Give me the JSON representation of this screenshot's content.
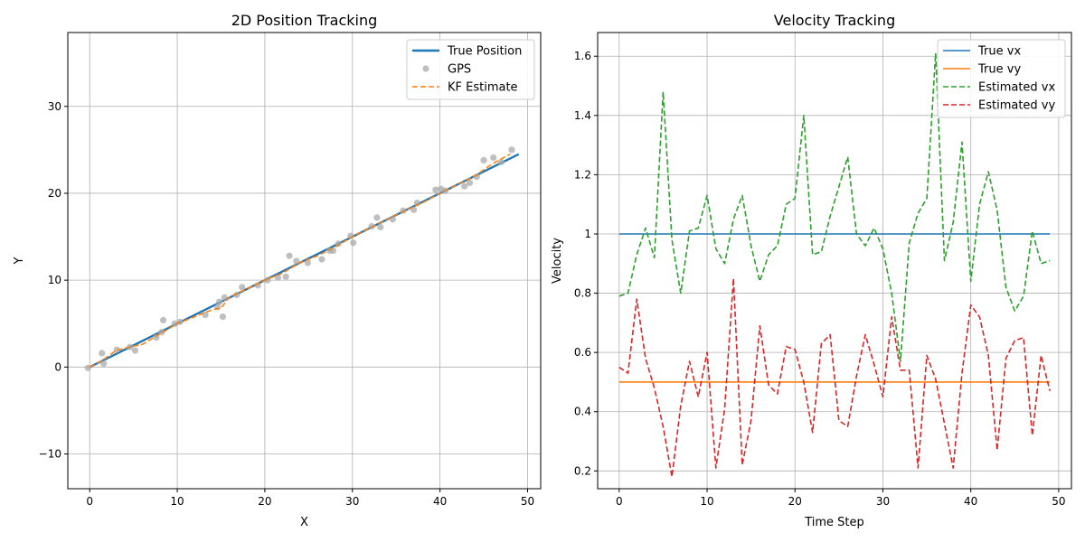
{
  "chart_data": [
    {
      "type": "line",
      "title": "2D Position Tracking",
      "xlabel": "X",
      "ylabel": "Y",
      "xlim": [
        -2.5,
        51.5
      ],
      "ylim": [
        -14,
        38.5
      ],
      "xticks": [
        0,
        10,
        20,
        30,
        40,
        50
      ],
      "yticks": [
        -10,
        0,
        10,
        20,
        30
      ],
      "grid": true,
      "legend_position": "top-right",
      "colors": {
        "true": "#1f77b4",
        "gps": "#aaaaaa",
        "kf": "#ff7f0e"
      },
      "series": [
        {
          "name": "True Position",
          "kind": "line",
          "style": "solid",
          "x": [
            0,
            49
          ],
          "y": [
            0,
            24.5
          ]
        },
        {
          "name": "GPS",
          "kind": "scatter",
          "x": [
            -0.2,
            1.4,
            1.6,
            3.1,
            4.6,
            5.2,
            7.6,
            8.2,
            8.4,
            9.7,
            10.3,
            13.2,
            14.6,
            14.8,
            15.2,
            15.4,
            16.8,
            17.4,
            19.2,
            20.3,
            21.5,
            22.4,
            22.8,
            23.6,
            24.9,
            26.5,
            27.4,
            27.8,
            28.4,
            29.8,
            30.1,
            32.2,
            32.8,
            33.2,
            34.6,
            35.8,
            37.0,
            37.4,
            39.5,
            40.1,
            40.6,
            42.8,
            43.4,
            44.2,
            45.0,
            46.1,
            47.0,
            48.2
          ],
          "y": [
            -0.1,
            1.6,
            0.4,
            2.0,
            2.3,
            1.9,
            3.4,
            4.0,
            5.4,
            5.0,
            5.2,
            6.0,
            6.9,
            7.5,
            5.8,
            8.0,
            8.3,
            9.2,
            9.4,
            10.0,
            10.3,
            10.4,
            12.8,
            12.2,
            12.0,
            12.4,
            13.4,
            13.4,
            14.2,
            15.1,
            14.3,
            16.2,
            17.2,
            16.1,
            17.0,
            18.0,
            18.1,
            18.9,
            20.4,
            20.5,
            20.3,
            20.8,
            21.2,
            21.9,
            23.8,
            24.1,
            23.6,
            25.0
          ]
        },
        {
          "name": "KF Estimate",
          "kind": "line",
          "style": "dashed",
          "x": [
            0,
            1.5,
            3,
            4.5,
            6,
            8,
            10,
            12,
            14,
            15,
            16,
            18,
            20,
            22,
            24,
            26,
            28,
            30,
            32,
            34,
            36,
            38,
            40,
            42,
            44,
            46,
            48
          ],
          "y": [
            0,
            0.8,
            1.9,
            2.3,
            2.6,
            3.8,
            5.0,
            5.8,
            6.6,
            6.8,
            8.1,
            9.0,
            10.0,
            10.8,
            12.0,
            12.8,
            13.8,
            15.0,
            16.0,
            17.0,
            18.0,
            18.9,
            20.0,
            21.0,
            22.0,
            23.4,
            24.5
          ]
        }
      ]
    },
    {
      "type": "line",
      "title": "Velocity Tracking",
      "xlabel": "Time Step",
      "ylabel": "Velocity",
      "xlim": [
        -2.45,
        51.45
      ],
      "ylim": [
        0.14,
        1.68
      ],
      "xticks": [
        0,
        10,
        20,
        30,
        40,
        50
      ],
      "yticks": [
        0.2,
        0.4,
        0.6,
        0.8,
        1.0,
        1.2,
        1.4,
        1.6
      ],
      "grid": true,
      "legend_position": "top-right",
      "colors": {
        "vx": "#1f77b4",
        "vy": "#ff7f0e",
        "est_vx": "#2ca02c",
        "est_vy": "#d62728"
      },
      "x": [
        0,
        1,
        2,
        3,
        4,
        5,
        6,
        7,
        8,
        9,
        10,
        11,
        12,
        13,
        14,
        15,
        16,
        17,
        18,
        19,
        20,
        21,
        22,
        23,
        24,
        25,
        26,
        27,
        28,
        29,
        30,
        31,
        32,
        33,
        34,
        35,
        36,
        37,
        38,
        39,
        40,
        41,
        42,
        43,
        44,
        45,
        46,
        47,
        48,
        49
      ],
      "series": [
        {
          "name": "True vx",
          "style": "solid",
          "values": [
            1.0,
            1.0,
            1.0,
            1.0,
            1.0,
            1.0,
            1.0,
            1.0,
            1.0,
            1.0,
            1.0,
            1.0,
            1.0,
            1.0,
            1.0,
            1.0,
            1.0,
            1.0,
            1.0,
            1.0,
            1.0,
            1.0,
            1.0,
            1.0,
            1.0,
            1.0,
            1.0,
            1.0,
            1.0,
            1.0,
            1.0,
            1.0,
            1.0,
            1.0,
            1.0,
            1.0,
            1.0,
            1.0,
            1.0,
            1.0,
            1.0,
            1.0,
            1.0,
            1.0,
            1.0,
            1.0,
            1.0,
            1.0,
            1.0,
            1.0
          ]
        },
        {
          "name": "True vy",
          "style": "solid",
          "values": [
            0.5,
            0.5,
            0.5,
            0.5,
            0.5,
            0.5,
            0.5,
            0.5,
            0.5,
            0.5,
            0.5,
            0.5,
            0.5,
            0.5,
            0.5,
            0.5,
            0.5,
            0.5,
            0.5,
            0.5,
            0.5,
            0.5,
            0.5,
            0.5,
            0.5,
            0.5,
            0.5,
            0.5,
            0.5,
            0.5,
            0.5,
            0.5,
            0.5,
            0.5,
            0.5,
            0.5,
            0.5,
            0.5,
            0.5,
            0.5,
            0.5,
            0.5,
            0.5,
            0.5,
            0.5,
            0.5,
            0.5,
            0.5,
            0.5,
            0.5
          ]
        },
        {
          "name": "Estimated vx",
          "style": "dashed",
          "values": [
            0.79,
            0.8,
            0.93,
            1.02,
            0.92,
            1.48,
            0.98,
            0.8,
            1.01,
            1.02,
            1.13,
            0.95,
            0.9,
            1.05,
            1.13,
            0.96,
            0.84,
            0.93,
            0.96,
            1.1,
            1.12,
            1.4,
            0.93,
            0.94,
            1.06,
            1.16,
            1.26,
            1.0,
            0.96,
            1.02,
            0.95,
            0.8,
            0.57,
            0.97,
            1.07,
            1.12,
            1.61,
            0.91,
            1.04,
            1.31,
            0.84,
            1.1,
            1.21,
            1.08,
            0.82,
            0.74,
            0.79,
            1.01,
            0.9,
            0.91
          ]
        },
        {
          "name": "Estimated vy",
          "style": "dashed",
          "values": [
            0.55,
            0.53,
            0.78,
            0.58,
            0.48,
            0.35,
            0.18,
            0.42,
            0.57,
            0.45,
            0.6,
            0.21,
            0.41,
            0.85,
            0.22,
            0.37,
            0.69,
            0.49,
            0.46,
            0.62,
            0.61,
            0.5,
            0.33,
            0.63,
            0.66,
            0.37,
            0.35,
            0.52,
            0.66,
            0.56,
            0.45,
            0.72,
            0.54,
            0.54,
            0.21,
            0.59,
            0.51,
            0.36,
            0.21,
            0.53,
            0.76,
            0.72,
            0.59,
            0.27,
            0.58,
            0.64,
            0.65,
            0.32,
            0.59,
            0.47
          ]
        }
      ]
    }
  ]
}
